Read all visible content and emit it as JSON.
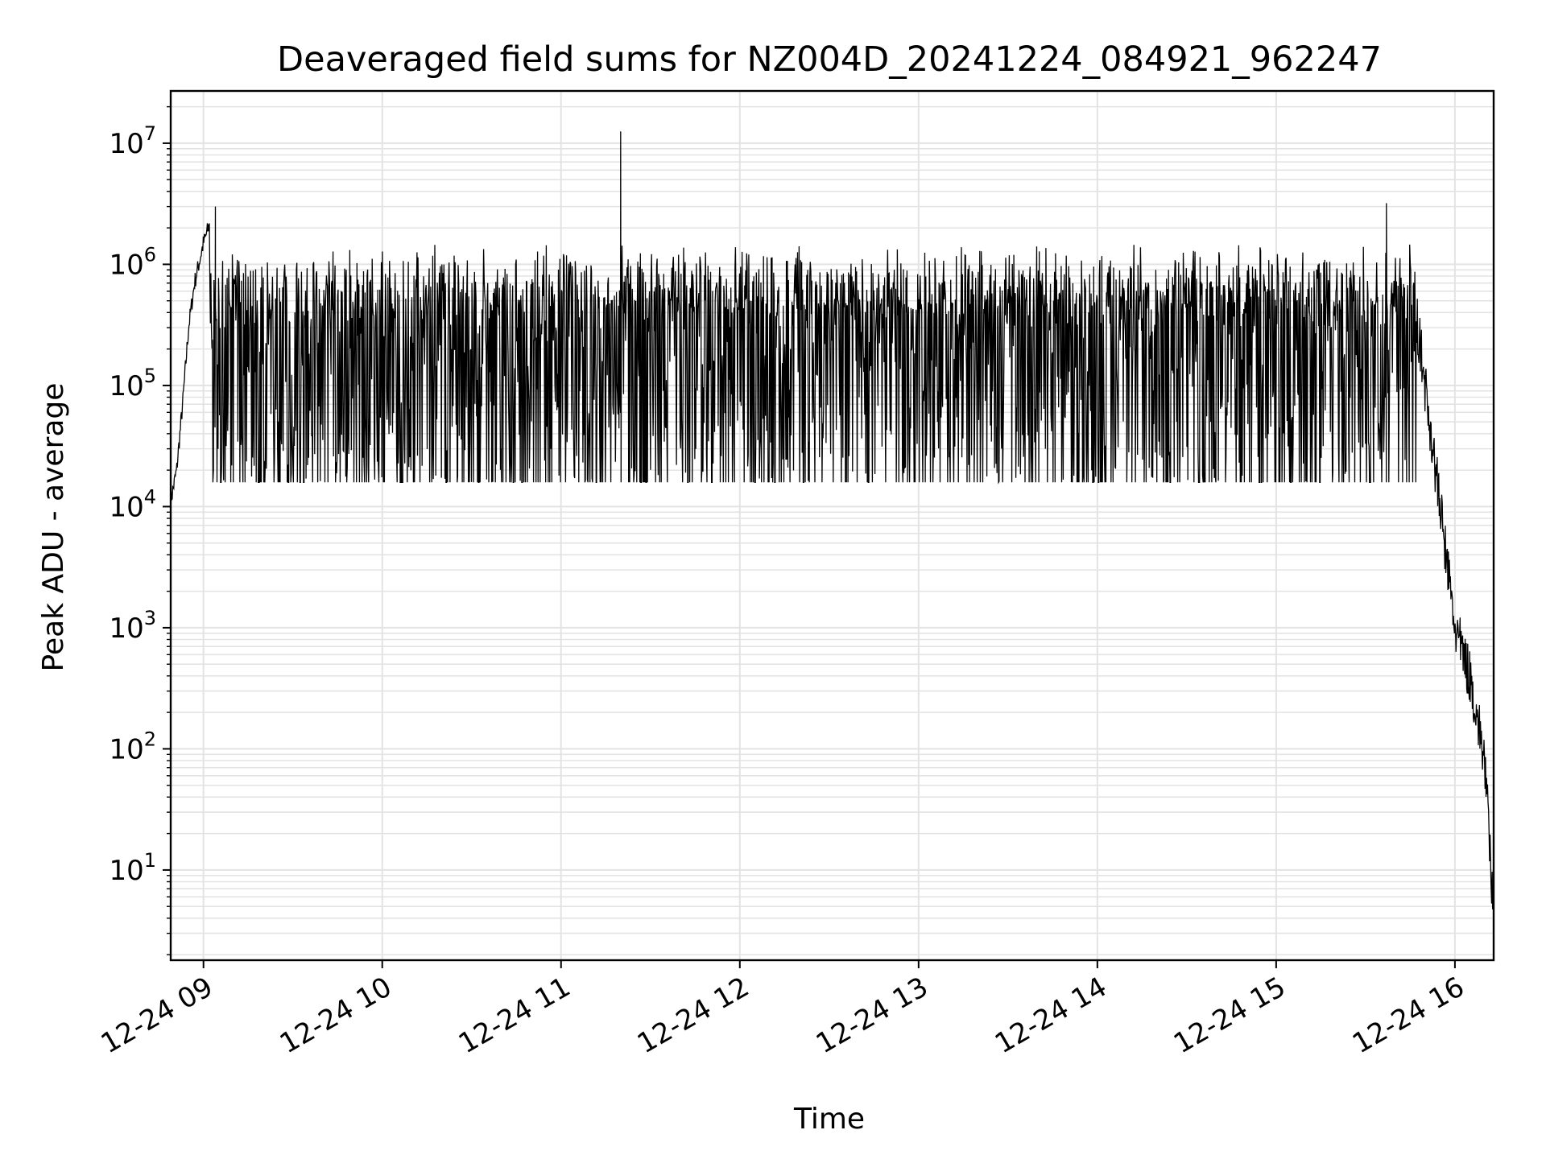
{
  "chart_data": {
    "type": "line",
    "title": "Deaveraged field sums for NZ004D_20241224_084921_962247",
    "xlabel": "Time",
    "ylabel": "Peak ADU - average",
    "yscale": "log",
    "ylim": [
      1.8,
      27000000
    ],
    "xlim": [
      "2024-12-24 08:49",
      "2024-12-24 16:13"
    ],
    "grid": true,
    "line_color": "#000000",
    "grid_color": "#e3e3e3",
    "x_ticks": [
      {
        "value": "2024-12-24 09:00",
        "label": "12-24 09"
      },
      {
        "value": "2024-12-24 10:00",
        "label": "12-24 10"
      },
      {
        "value": "2024-12-24 11:00",
        "label": "12-24 11"
      },
      {
        "value": "2024-12-24 12:00",
        "label": "12-24 12"
      },
      {
        "value": "2024-12-24 13:00",
        "label": "12-24 13"
      },
      {
        "value": "2024-12-24 14:00",
        "label": "12-24 14"
      },
      {
        "value": "2024-12-24 15:00",
        "label": "12-24 15"
      },
      {
        "value": "2024-12-24 16:00",
        "label": "12-24 16"
      }
    ],
    "y_ticks": [
      {
        "value": 10,
        "base": "10",
        "exp": "1"
      },
      {
        "value": 100,
        "base": "10",
        "exp": "2"
      },
      {
        "value": 1000,
        "base": "10",
        "exp": "3"
      },
      {
        "value": 10000,
        "base": "10",
        "exp": "4"
      },
      {
        "value": 100000,
        "base": "10",
        "exp": "5"
      },
      {
        "value": 1000000,
        "base": "10",
        "exp": "6"
      },
      {
        "value": 10000000,
        "base": "10",
        "exp": "7"
      }
    ],
    "series": [
      {
        "points": [
          [
            "2024-12-24 08:49",
            11000
          ],
          [
            "2024-12-24 08:51",
            20000
          ],
          [
            "2024-12-24 08:53",
            70000
          ],
          [
            "2024-12-24 08:55",
            300000
          ],
          [
            "2024-12-24 08:57",
            700000
          ],
          [
            "2024-12-24 09:00",
            1500000
          ],
          [
            "2024-12-24 09:04",
            3000000
          ],
          [
            "2024-12-24 09:10",
            1000000
          ],
          [
            "2024-12-24 09:20",
            1400000
          ],
          [
            "2024-12-24 09:30",
            1600000
          ],
          [
            "2024-12-24 09:40",
            18000
          ],
          [
            "2024-12-24 10:00",
            15000
          ],
          [
            "2024-12-24 10:30",
            17000
          ],
          [
            "2024-12-24 11:00",
            20000
          ],
          [
            "2024-12-24 11:20",
            12500000
          ],
          [
            "2024-12-24 11:30",
            20000
          ],
          [
            "2024-12-24 12:00",
            17000
          ],
          [
            "2024-12-24 12:30",
            18000
          ],
          [
            "2024-12-24 13:00",
            20000
          ],
          [
            "2024-12-24 13:30",
            1600000
          ],
          [
            "2024-12-24 14:00",
            25000
          ],
          [
            "2024-12-24 14:30",
            30000
          ],
          [
            "2024-12-24 15:00",
            1500000
          ],
          [
            "2024-12-24 15:30",
            2000000
          ],
          [
            "2024-12-24 15:37",
            3200000
          ],
          [
            "2024-12-24 15:45",
            900000
          ],
          [
            "2024-12-24 15:50",
            100000
          ],
          [
            "2024-12-24 15:55",
            10000
          ],
          [
            "2024-12-24 16:00",
            1000
          ],
          [
            "2024-12-24 16:05",
            400
          ],
          [
            "2024-12-24 16:10",
            80
          ],
          [
            "2024-12-24 16:13",
            3.8
          ]
        ]
      }
    ]
  }
}
